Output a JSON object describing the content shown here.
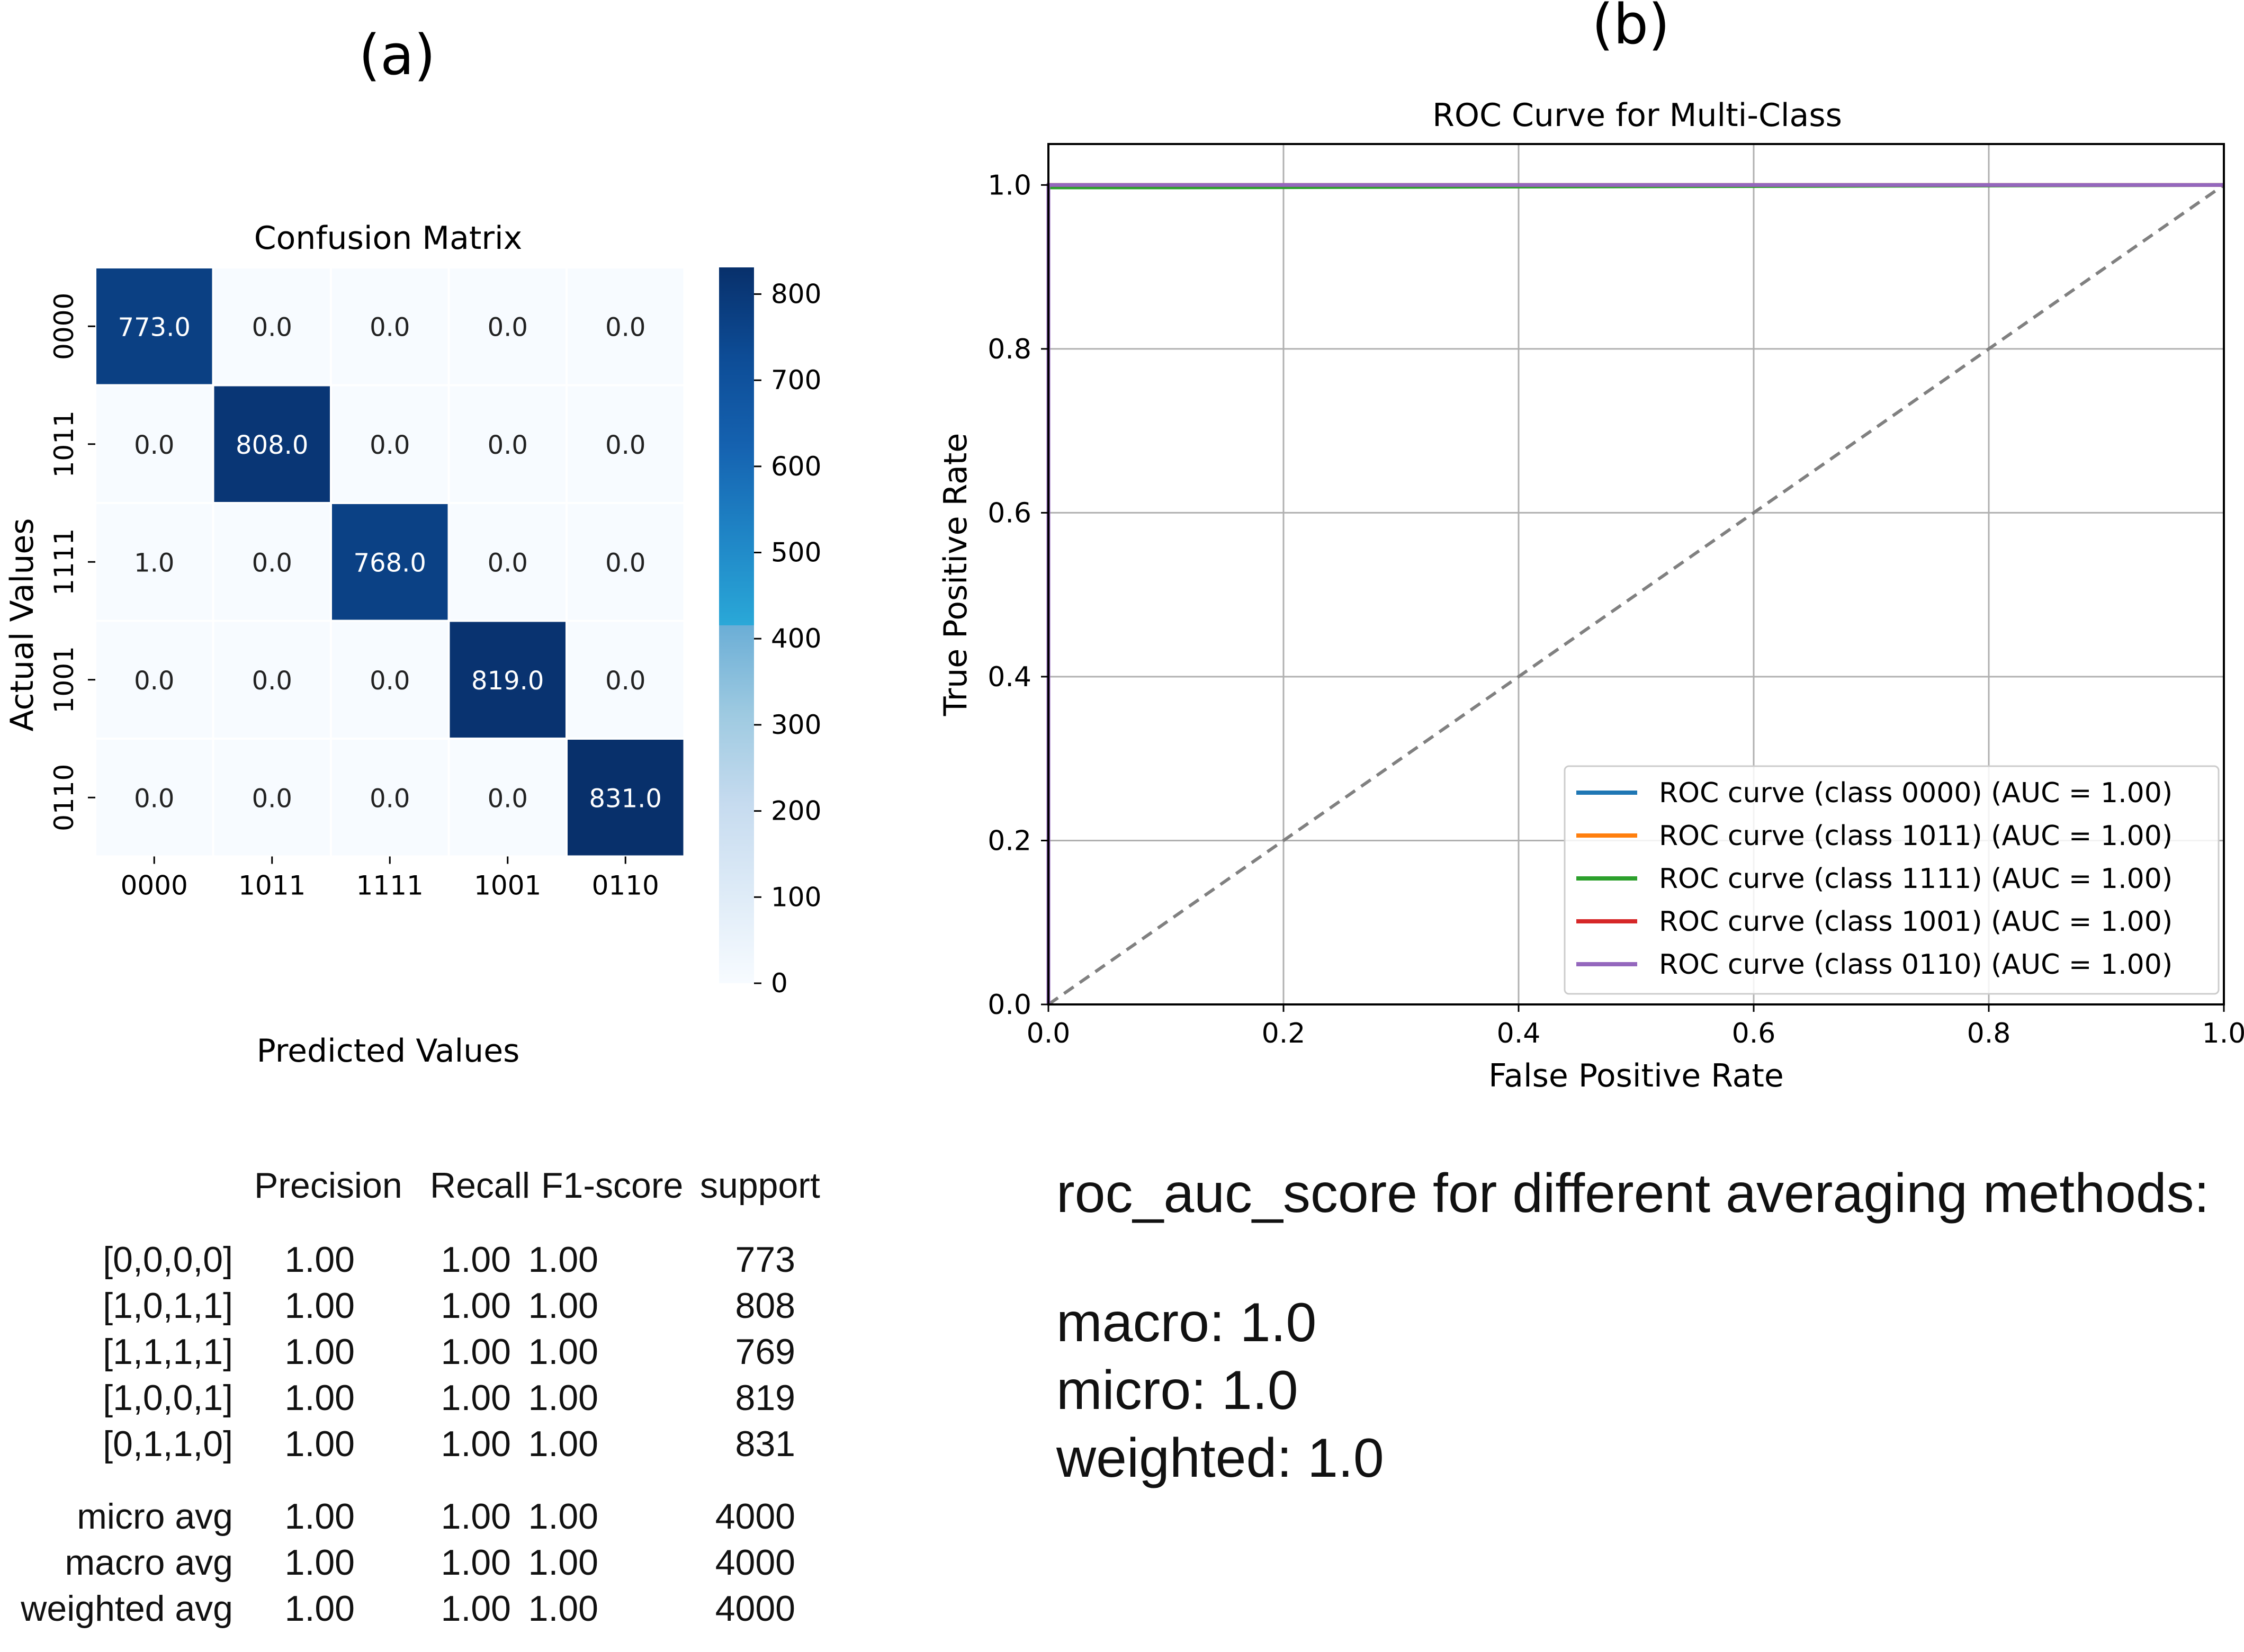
{
  "panel_a_label": "(a)",
  "panel_b_label": "(b)",
  "chart_data": [
    {
      "type": "heatmap",
      "title": "Confusion Matrix",
      "xlabel": "Predicted Values",
      "ylabel": "Actual Values",
      "x_categories": [
        "0000",
        "1011",
        "1111",
        "1001",
        "0110"
      ],
      "y_categories": [
        "0000",
        "1011",
        "1111",
        "1001",
        "0110"
      ],
      "values": [
        [
          773.0,
          0.0,
          0.0,
          0.0,
          0.0
        ],
        [
          0.0,
          808.0,
          0.0,
          0.0,
          0.0
        ],
        [
          1.0,
          0.0,
          768.0,
          0.0,
          0.0
        ],
        [
          0.0,
          0.0,
          0.0,
          819.0,
          0.0
        ],
        [
          0.0,
          0.0,
          0.0,
          0.0,
          831.0
        ]
      ],
      "cell_labels": [
        [
          "773.0",
          "0.0",
          "0.0",
          "0.0",
          "0.0"
        ],
        [
          "0.0",
          "808.0",
          "0.0",
          "0.0",
          "0.0"
        ],
        [
          "1.0",
          "0.0",
          "768.0",
          "0.0",
          "0.0"
        ],
        [
          "0.0",
          "0.0",
          "0.0",
          "819.0",
          "0.0"
        ],
        [
          "0.0",
          "0.0",
          "0.0",
          "0.0",
          "831.0"
        ]
      ],
      "colorbar": {
        "min": 0,
        "max": 831,
        "ticks": [
          0,
          100,
          200,
          300,
          400,
          500,
          600,
          700,
          800
        ],
        "tick_labels": [
          "0",
          "100",
          "200",
          "300",
          "400",
          "500",
          "600",
          "700",
          "800"
        ],
        "colormap": "Blues"
      }
    },
    {
      "type": "line",
      "title": "ROC Curve for Multi-Class",
      "xlabel": "False Positive Rate",
      "ylabel": "True Positive Rate",
      "xlim": [
        0.0,
        1.0
      ],
      "ylim": [
        0.0,
        1.05
      ],
      "x_ticks": [
        0.0,
        0.2,
        0.4,
        0.6,
        0.8,
        1.0
      ],
      "x_tick_labels": [
        "0.0",
        "0.2",
        "0.4",
        "0.6",
        "0.8",
        "1.0"
      ],
      "y_ticks": [
        0.0,
        0.2,
        0.4,
        0.6,
        0.8,
        1.0
      ],
      "y_tick_labels": [
        "0.0",
        "0.2",
        "0.4",
        "0.6",
        "0.8",
        "1.0"
      ],
      "grid": true,
      "legend_position": "lower-right",
      "series": [
        {
          "name": "ROC curve (class 0000) (AUC = 1.00)",
          "color": "#1f77b4",
          "x": [
            0.0,
            0.0,
            1.0
          ],
          "y": [
            0.0,
            1.0,
            1.0
          ]
        },
        {
          "name": "ROC curve (class 1011) (AUC = 1.00)",
          "color": "#ff7f0e",
          "x": [
            0.0,
            0.0,
            1.0
          ],
          "y": [
            0.0,
            1.0,
            1.0
          ]
        },
        {
          "name": "ROC curve (class 1111) (AUC = 1.00)",
          "color": "#2ca02c",
          "x": [
            0.0,
            0.0,
            0.11,
            1.0
          ],
          "y": [
            0.0,
            0.997,
            0.997,
            1.0
          ]
        },
        {
          "name": "ROC curve (class 1001) (AUC = 1.00)",
          "color": "#d62728",
          "x": [
            0.0,
            0.0,
            1.0
          ],
          "y": [
            0.0,
            1.0,
            1.0
          ]
        },
        {
          "name": "ROC curve (class 0110) (AUC = 1.00)",
          "color": "#9467bd",
          "x": [
            0.0,
            0.0,
            1.0
          ],
          "y": [
            0.0,
            1.0,
            1.0
          ]
        }
      ],
      "reference_line": {
        "x": [
          0.0,
          1.0
        ],
        "y": [
          0.0,
          1.0
        ],
        "color": "#808080",
        "style": "dashed"
      }
    }
  ],
  "classification_report": {
    "headers": [
      "Precision",
      "Recall",
      "F1-score",
      "support"
    ],
    "rows": [
      {
        "label": "[0,0,0,0]",
        "precision": "1.00",
        "recall": "1.00",
        "f1": "1.00",
        "support": "773"
      },
      {
        "label": "[1,0,1,1]",
        "precision": "1.00",
        "recall": "1.00",
        "f1": "1.00",
        "support": "808"
      },
      {
        "label": "[1,1,1,1]",
        "precision": "1.00",
        "recall": "1.00",
        "f1": "1.00",
        "support": "769"
      },
      {
        "label": "[1,0,0,1]",
        "precision": "1.00",
        "recall": "1.00",
        "f1": "1.00",
        "support": "819"
      },
      {
        "label": "[0,1,1,0]",
        "precision": "1.00",
        "recall": "1.00",
        "f1": "1.00",
        "support": "831"
      }
    ],
    "averages": [
      {
        "label": "micro avg",
        "precision": "1.00",
        "recall": "1.00",
        "f1": "1.00",
        "support": "4000"
      },
      {
        "label": "macro avg",
        "precision": "1.00",
        "recall": "1.00",
        "f1": "1.00",
        "support": "4000"
      },
      {
        "label": "weighted avg",
        "precision": "1.00",
        "recall": "1.00",
        "f1": "1.00",
        "support": "4000"
      }
    ]
  },
  "roc_auc_summary": {
    "title": "roc_auc_score for different averaging methods:",
    "lines": [
      "macro: 1.0",
      "micro: 1.0",
      "weighted: 1.0"
    ]
  }
}
